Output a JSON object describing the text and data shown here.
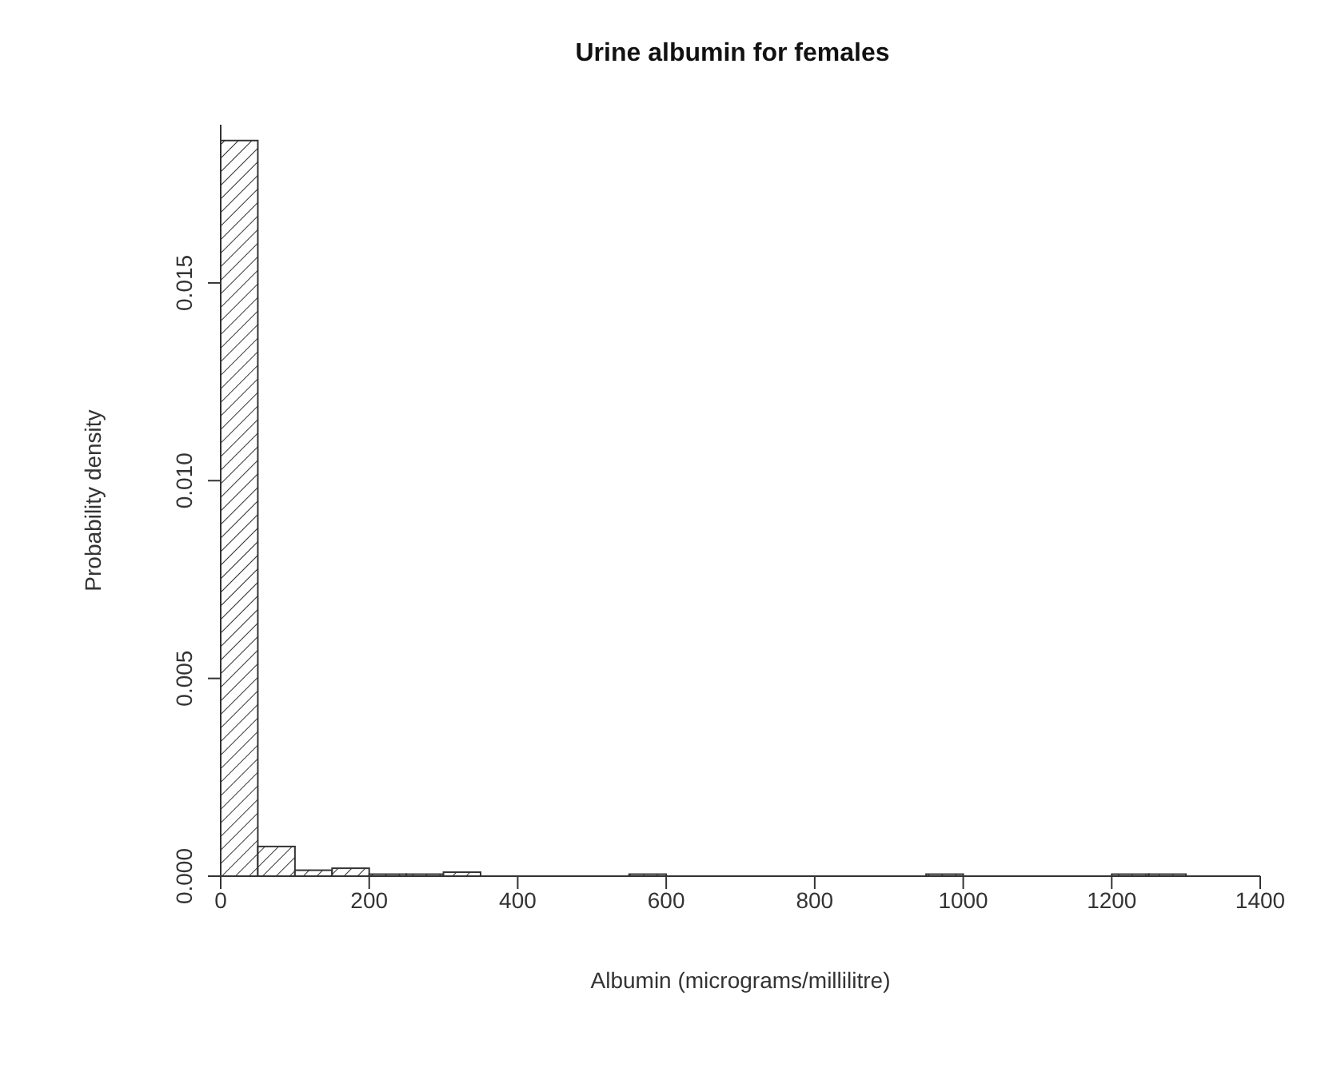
{
  "chart_data": {
    "type": "histogram",
    "title": "Urine albumin for females",
    "xlabel": "Albumin (micrograms/millilitre)",
    "ylabel": "Probability density",
    "bins": [
      0,
      50,
      100,
      150,
      200,
      250,
      300,
      350,
      400,
      450,
      500,
      550,
      600,
      650,
      700,
      750,
      800,
      850,
      900,
      950,
      1000,
      1050,
      1100,
      1150,
      1200,
      1250,
      1300
    ],
    "values": [
      0.0186,
      0.00075,
      0.00015,
      0.0002,
      5e-05,
      5e-05,
      0.0001,
      0,
      0,
      0,
      0,
      5e-05,
      0,
      0,
      0,
      0,
      0,
      0,
      0,
      5e-05,
      0,
      0,
      0,
      0,
      5e-05,
      5e-05
    ],
    "color": "#333333",
    "xlim": [
      0,
      1400
    ],
    "xticks": [
      0,
      200,
      400,
      600,
      800,
      1000,
      1200,
      1400
    ],
    "ylim": [
      0,
      0.019
    ],
    "yticks": [
      {
        "value": 0,
        "label": "0.000"
      },
      {
        "value": 0.005,
        "label": "0.005"
      },
      {
        "value": 0.01,
        "label": "0.010"
      },
      {
        "value": 0.015,
        "label": "0.015"
      }
    ],
    "grid": false
  }
}
